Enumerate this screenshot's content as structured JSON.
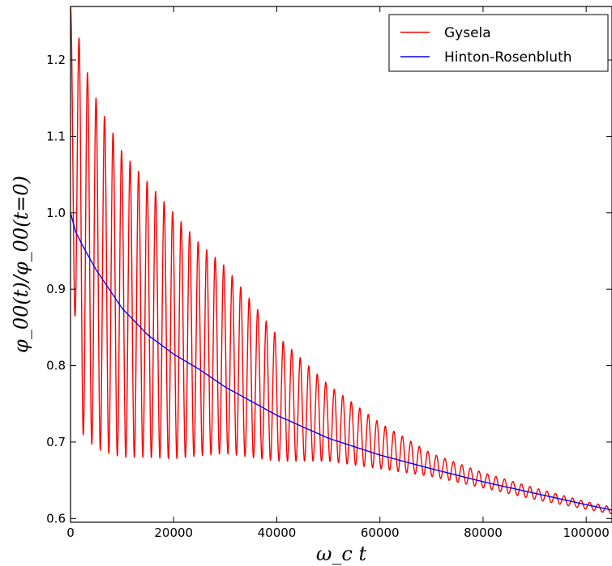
{
  "chart_data": {
    "type": "line",
    "xlabel": "ω_c t",
    "ylabel": "φ_00(t)/φ_00(t=0)",
    "xlim": [
      0,
      105000
    ],
    "ylim": [
      0.595,
      1.27
    ],
    "xticks": [
      0,
      20000,
      40000,
      60000,
      80000,
      100000
    ],
    "xtick_labels": [
      "0",
      "20000",
      "40000",
      "60000",
      "80000",
      "100000"
    ],
    "yticks": [
      0.6,
      0.7,
      0.8,
      0.9,
      1.0,
      1.1,
      1.2
    ],
    "ytick_labels": [
      "0.6",
      "0.7",
      "0.8",
      "0.9",
      "1.0",
      "1.1",
      "1.2"
    ],
    "grid": false,
    "legend_position": "top-right",
    "series": [
      {
        "name": "Gysela",
        "color": "#ff0000",
        "description": "damped oscillation (GAM) around the Hinton-Rosenbluth curve",
        "period": 1650,
        "upper_envelope": {
          "x": [
            0,
            1800,
            3600,
            5500,
            7500,
            10000,
            15000,
            20000,
            25000,
            30000,
            40000,
            50000,
            60000,
            70000,
            80000,
            90000,
            100000,
            105000
          ],
          "y": [
            1.27,
            1.225,
            1.175,
            1.14,
            1.115,
            1.08,
            1.04,
            1.0,
            0.96,
            0.93,
            0.84,
            0.775,
            0.725,
            0.685,
            0.66,
            0.64,
            0.622,
            0.615
          ]
        },
        "lower_envelope": {
          "x": [
            0,
            1800,
            3600,
            5500,
            7500,
            10000,
            15000,
            20000,
            25000,
            30000,
            40000,
            50000,
            60000,
            70000,
            80000,
            90000,
            100000,
            105000
          ],
          "y": [
            1.0,
            0.715,
            0.7,
            0.69,
            0.685,
            0.68,
            0.68,
            0.678,
            0.682,
            0.685,
            0.675,
            0.675,
            0.665,
            0.655,
            0.64,
            0.625,
            0.612,
            0.606
          ]
        }
      },
      {
        "name": "Hinton-Rosenbluth",
        "color": "#0000ff",
        "x": [
          0,
          1000,
          2500,
          5000,
          10000,
          15000,
          20000,
          25000,
          30000,
          40000,
          50000,
          60000,
          70000,
          80000,
          90000,
          100000,
          105000
        ],
        "y": [
          1.0,
          0.975,
          0.955,
          0.925,
          0.875,
          0.84,
          0.815,
          0.795,
          0.772,
          0.735,
          0.705,
          0.683,
          0.665,
          0.648,
          0.633,
          0.618,
          0.611
        ]
      }
    ]
  }
}
